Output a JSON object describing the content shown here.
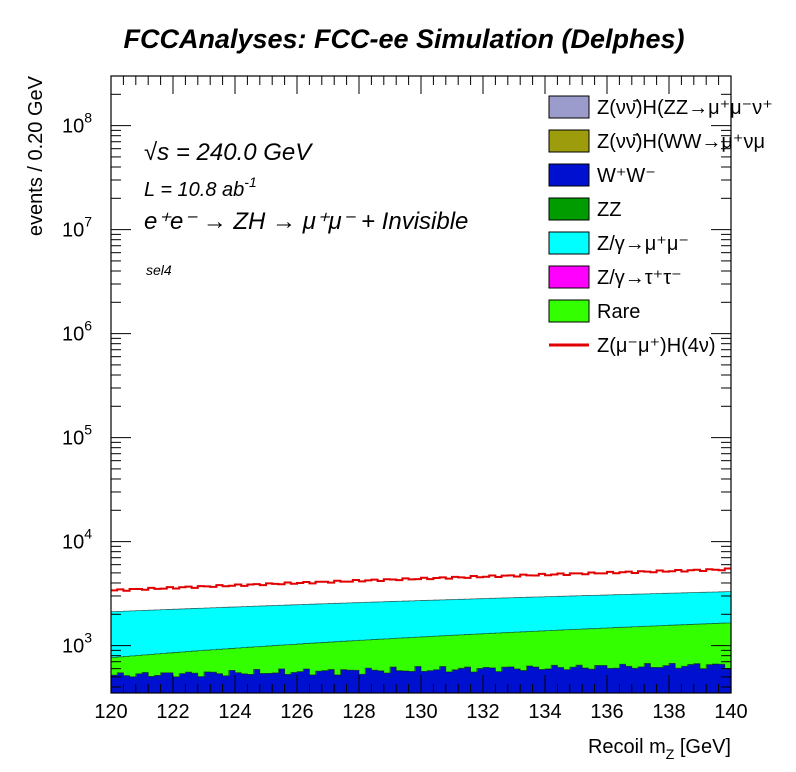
{
  "title": "FCCAnalyses: FCC-ee Simulation (Delphes)",
  "annotations": {
    "sqrts": "√s = 240.0 GeV",
    "lumi_prefix": "L = 10.8 ab",
    "lumi_exp": "-1",
    "process": "e⁺e⁻ → ZH → μ⁺μ⁻ + Invisible",
    "selection": "sel4"
  },
  "chart_data": {
    "type": "area",
    "stacked": true,
    "log_y": true,
    "xlabel": "Recoil m",
    "xlabel_sub": "Z",
    "xlabel_unit": " [GeV]",
    "ylabel": "events / 0.20 GeV",
    "xlim": [
      120,
      140
    ],
    "ylim": [
      350,
      300000000
    ],
    "x_ticks": [
      "120",
      "122",
      "124",
      "126",
      "128",
      "130",
      "132",
      "134",
      "136",
      "138",
      "140"
    ],
    "y_ticks": [
      {
        "base": "10",
        "exp": "3"
      },
      {
        "base": "10",
        "exp": "4"
      },
      {
        "base": "10",
        "exp": "5"
      },
      {
        "base": "10",
        "exp": "6"
      },
      {
        "base": "10",
        "exp": "7"
      },
      {
        "base": "10",
        "exp": "8"
      }
    ],
    "bin_width": 0.2,
    "legend_placement": "top-right",
    "series": [
      {
        "name": "W⁺W⁻",
        "color": "#0010d0",
        "start": 520,
        "end": 650
      },
      {
        "name": "Rare",
        "color": "#33ff00",
        "start": 770,
        "end": 1650
      },
      {
        "name": "Z/γ→μ⁺μ⁻",
        "color": "#00ffff",
        "start": 2120,
        "end": 3300
      }
    ],
    "total_start": 3400,
    "total_end": 5400,
    "legend": [
      {
        "label": "Z(νν̄)H(ZZ→μ⁺μ⁻ν⁺",
        "color": "#9c9ccc",
        "kind": "box"
      },
      {
        "label": "Z(νν̄)H(WW→μ⁺νμ",
        "color": "#9c9c0c",
        "kind": "box"
      },
      {
        "label": "W⁺W⁻",
        "color": "#0010d0",
        "kind": "box"
      },
      {
        "label": "ZZ",
        "color": "#009c00",
        "kind": "box"
      },
      {
        "label": "Z/γ→μ⁺μ⁻",
        "color": "#00ffff",
        "kind": "box"
      },
      {
        "label": "Z/γ→τ⁺τ⁻",
        "color": "#ff00ff",
        "kind": "box"
      },
      {
        "label": "Rare",
        "color": "#33ff00",
        "kind": "box"
      },
      {
        "label": "Z(μ⁻μ⁺)H(4ν)",
        "color": "#e00000",
        "kind": "line"
      }
    ]
  }
}
